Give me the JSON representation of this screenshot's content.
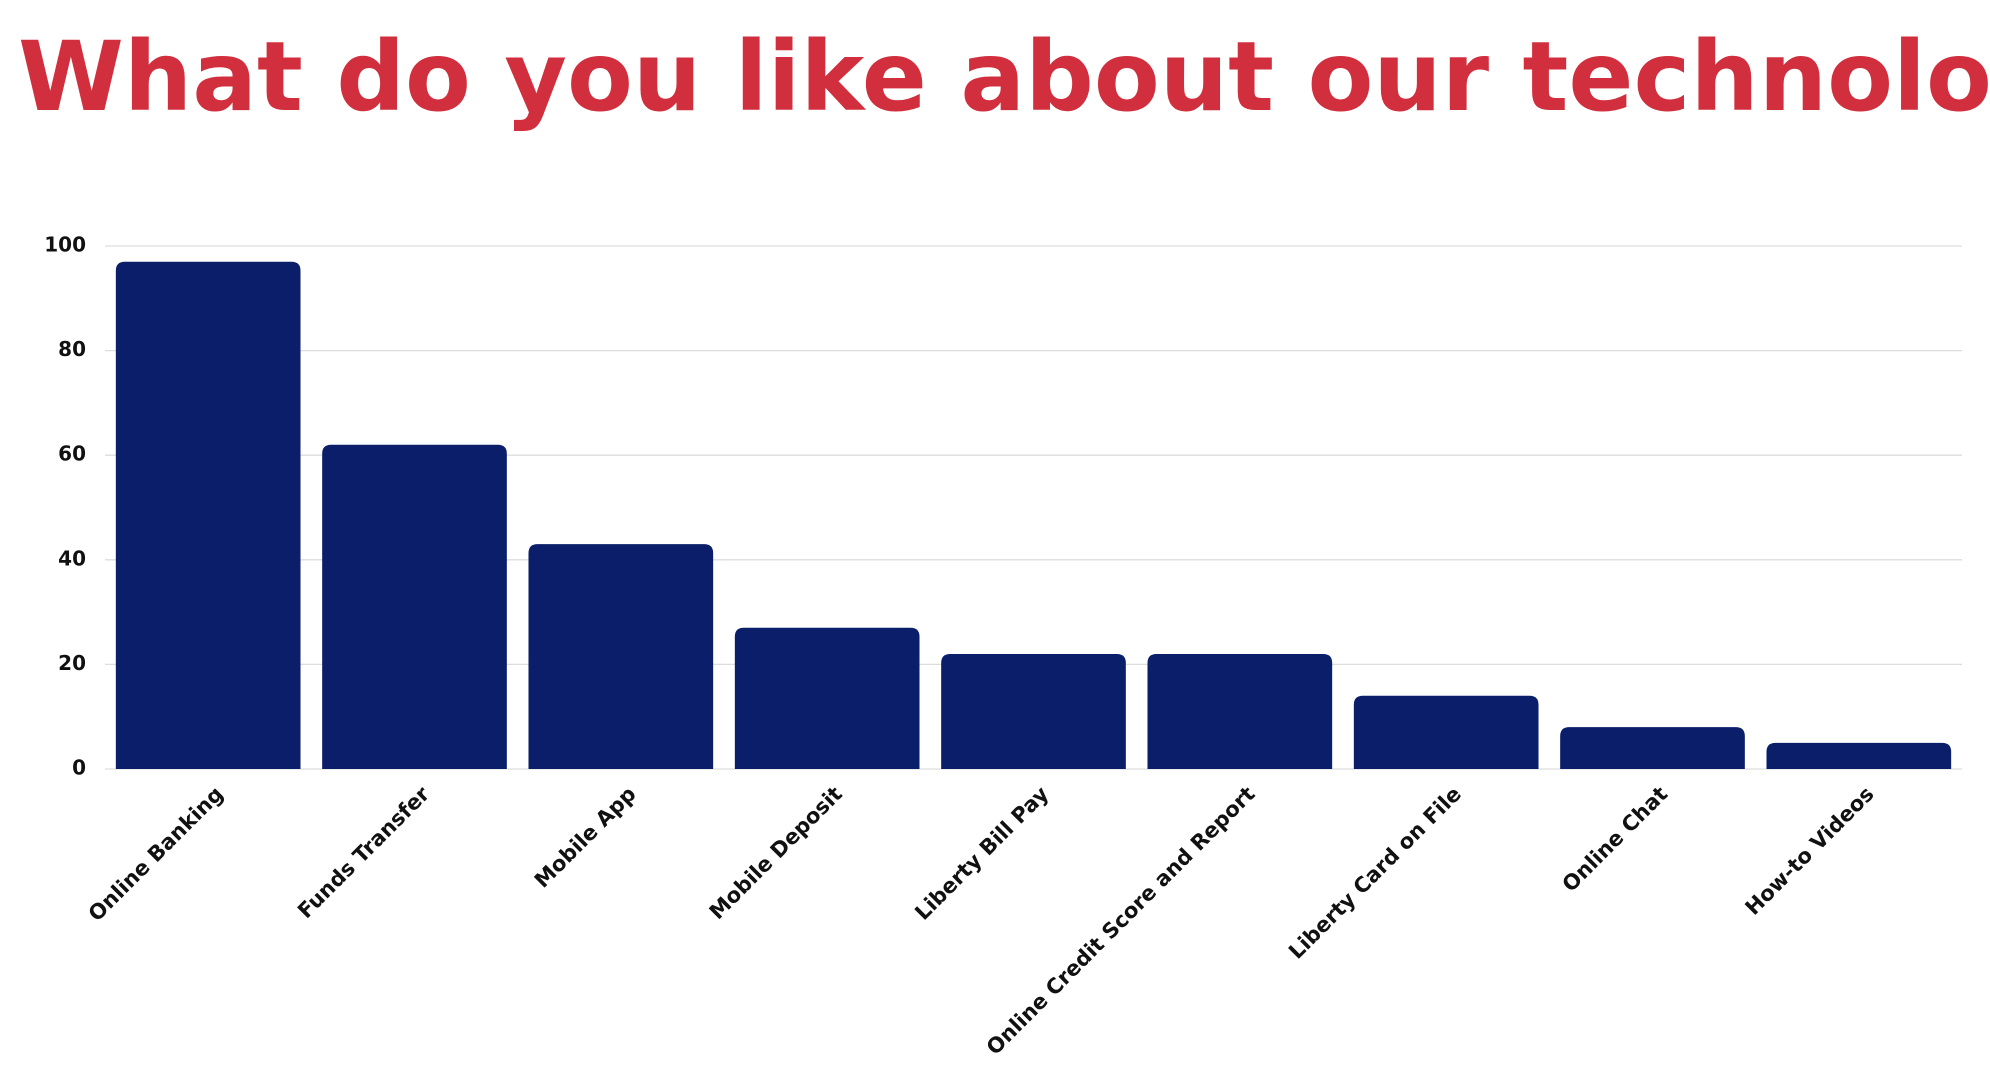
{
  "chart_data": {
    "type": "bar",
    "title": "What do you like about our technology?",
    "categories": [
      "Online Banking",
      "Funds Transfer",
      "Mobile App",
      "Mobile Deposit",
      "Liberty Bill Pay",
      "Online Credit Score and Report",
      "Liberty Card on File",
      "Online Chat",
      "How-to Videos"
    ],
    "values": [
      97,
      62,
      43,
      27,
      22,
      22,
      14,
      8,
      5
    ],
    "color": "#0a1e6a",
    "ylim": [
      0,
      100
    ],
    "yticks": [
      0,
      20,
      40,
      60,
      80,
      100
    ],
    "grid": true
  }
}
